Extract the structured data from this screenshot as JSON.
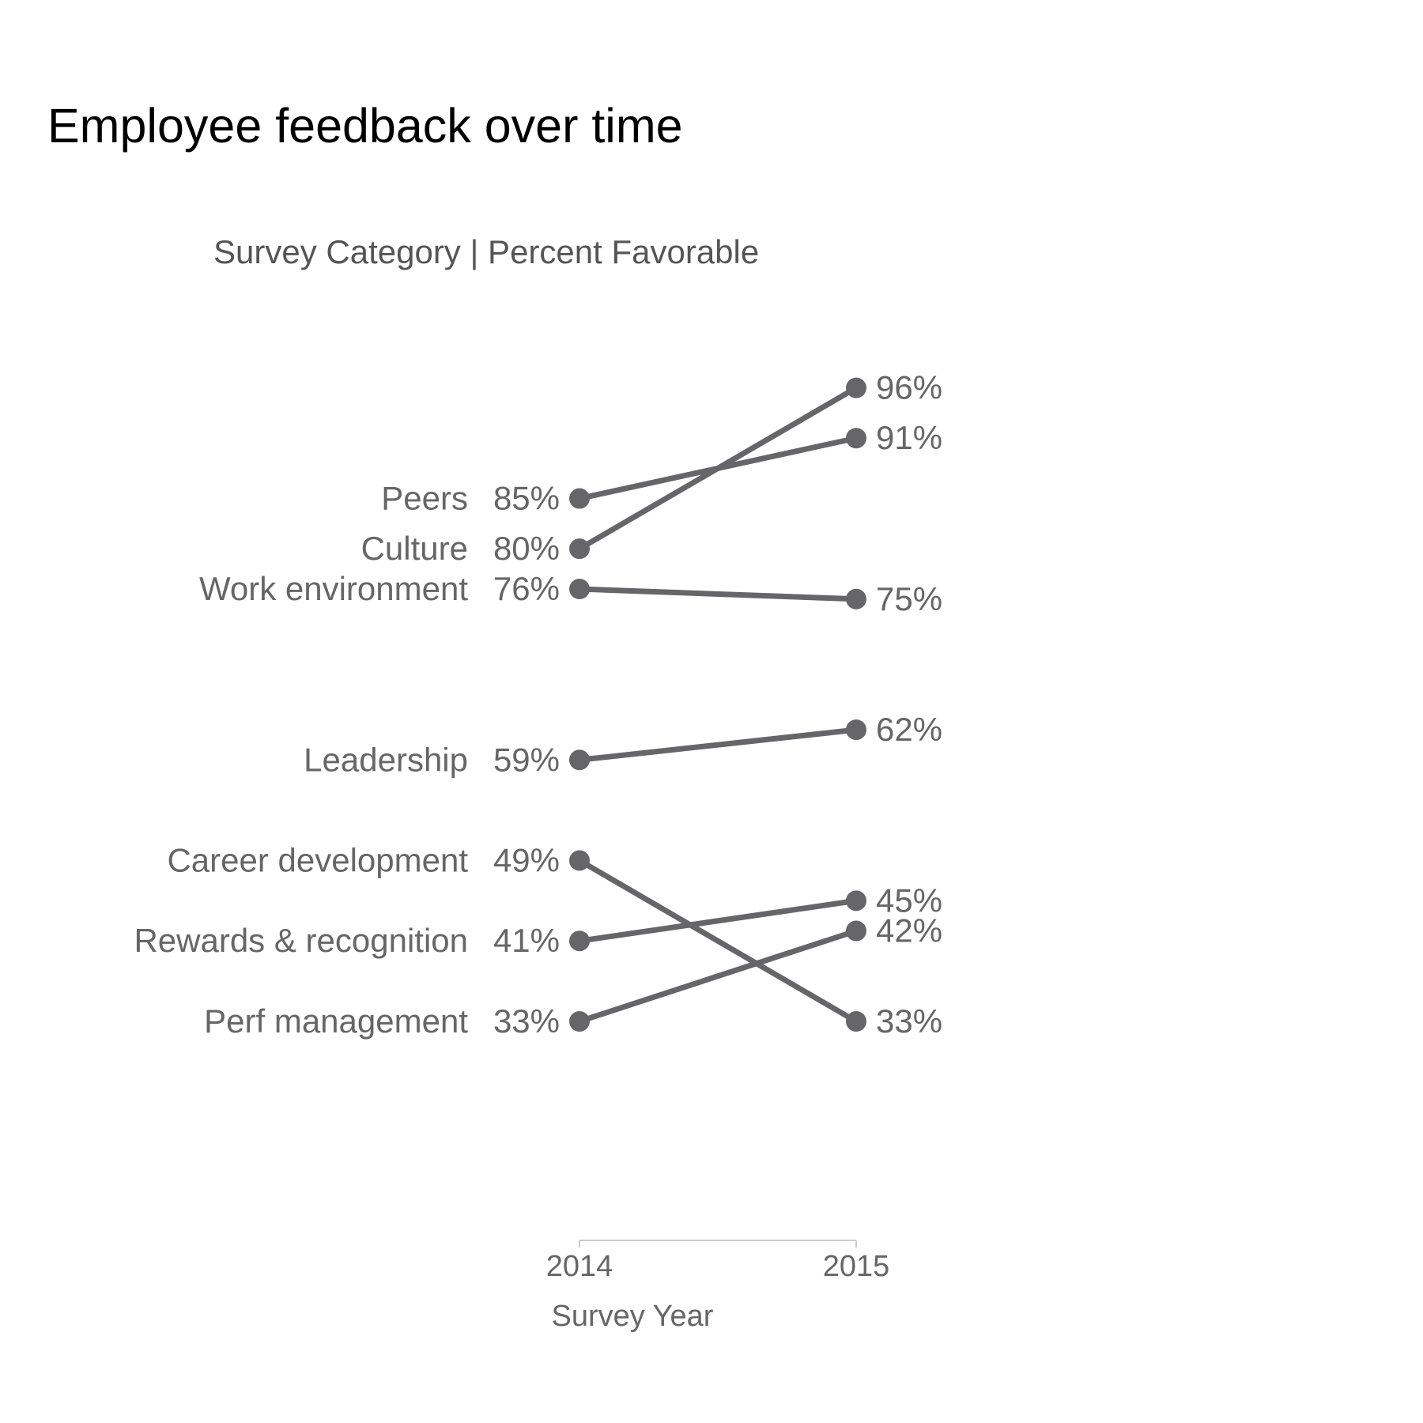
{
  "chart_data": {
    "type": "line",
    "title": "Employee feedback over time",
    "subtitle": "Survey Category | Percent Favorable",
    "xlabel": "Survey Year",
    "x": [
      "2014",
      "2015"
    ],
    "y_unit": "%",
    "grid": false,
    "legend": "none",
    "series": [
      {
        "name": "Peers",
        "values": [
          85,
          91
        ]
      },
      {
        "name": "Culture",
        "values": [
          80,
          96
        ]
      },
      {
        "name": "Work environment",
        "values": [
          76,
          75
        ]
      },
      {
        "name": "Leadership",
        "values": [
          59,
          62
        ]
      },
      {
        "name": "Career development",
        "values": [
          49,
          33
        ]
      },
      {
        "name": "Rewards & recognition",
        "values": [
          41,
          45
        ]
      },
      {
        "name": "Perf management",
        "values": [
          33,
          42
        ]
      }
    ],
    "colors": {
      "line": "#666669",
      "text": "#666666",
      "title": "#000000",
      "axis": "#cccccc"
    }
  }
}
